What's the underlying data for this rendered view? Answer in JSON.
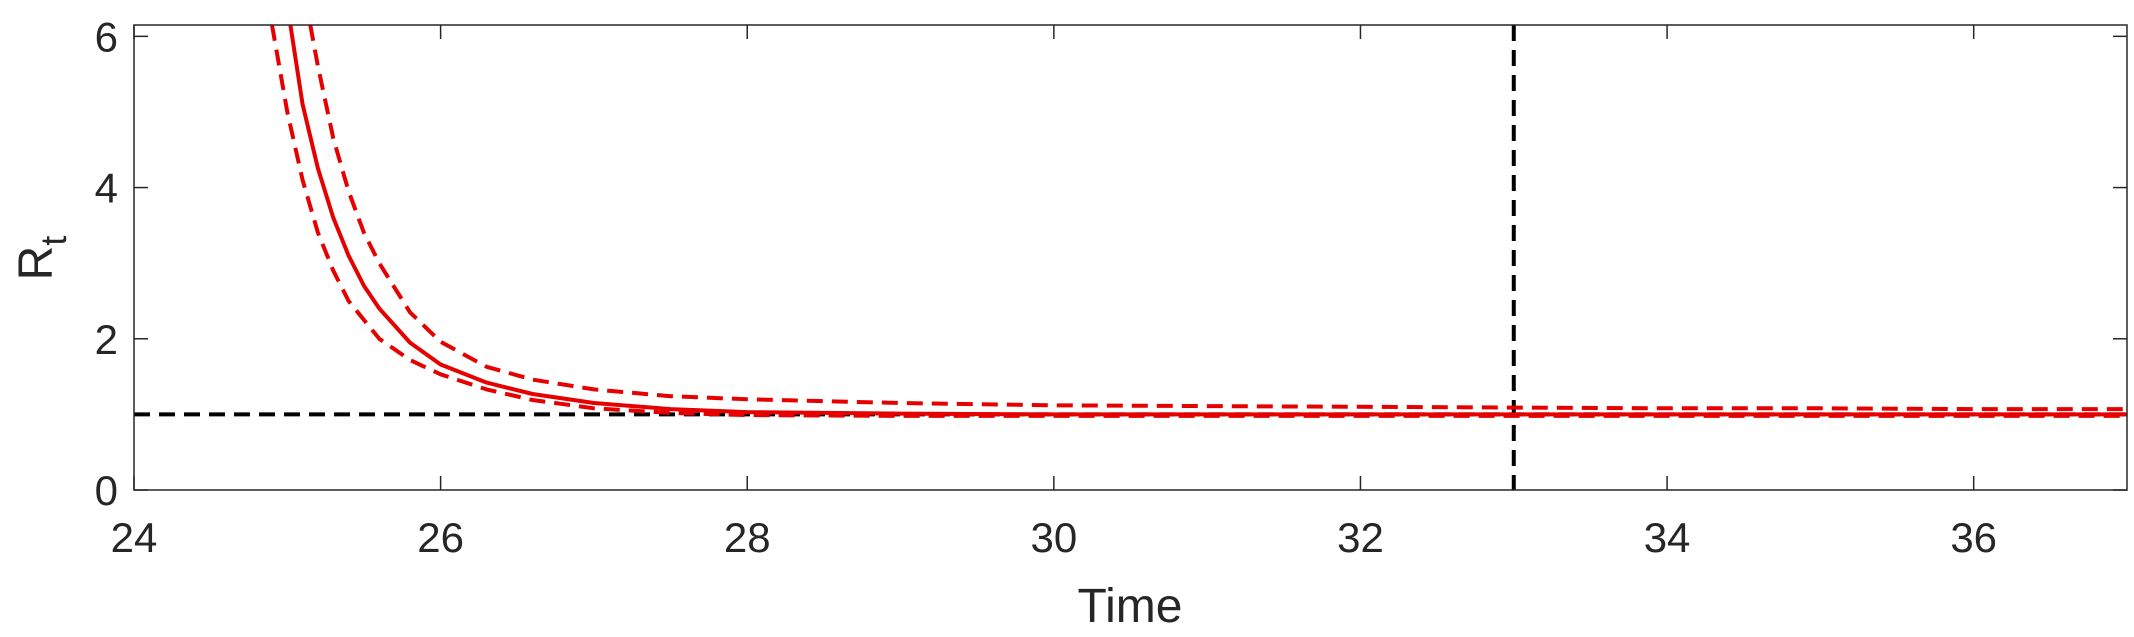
{
  "chart_data": {
    "type": "line",
    "xlabel": "Time",
    "ylabel": "R",
    "ylabel_subscript": "t",
    "xlim": [
      24,
      37
    ],
    "ylim": [
      0,
      6.15
    ],
    "xticks": [
      24,
      26,
      28,
      30,
      32,
      34,
      36
    ],
    "yticks": [
      0,
      2,
      4,
      6
    ],
    "xtick_labels": [
      "24",
      "26",
      "28",
      "30",
      "32",
      "34",
      "36"
    ],
    "ytick_labels": [
      "0",
      "2",
      "4",
      "6"
    ],
    "grid": false,
    "colors": {
      "estimate": "#e60000",
      "reference": "#000000",
      "axis": "#262626"
    },
    "series": [
      {
        "style": "solid",
        "color": "#e60000",
        "x": [
          25.02,
          25.1,
          25.2,
          25.3,
          25.4,
          25.5,
          25.6,
          25.8,
          26.0,
          26.3,
          26.6,
          27.0,
          27.5,
          28.0,
          29.0,
          30.0,
          32.0,
          34.0,
          37.0
        ],
        "y": [
          6.15,
          5.1,
          4.25,
          3.6,
          3.1,
          2.7,
          2.4,
          1.95,
          1.66,
          1.42,
          1.27,
          1.15,
          1.07,
          1.03,
          1.01,
          1.0,
          1.0,
          1.0,
          1.0
        ]
      },
      {
        "style": "dashed",
        "color": "#e60000",
        "x": [
          25.15,
          25.2,
          25.3,
          25.4,
          25.5,
          25.6,
          25.8,
          26.0,
          26.3,
          26.6,
          27.0,
          27.5,
          28.0,
          29.0,
          30.0,
          31.0,
          32.0,
          33.0,
          34.0,
          35.0,
          36.0,
          37.0
        ],
        "y": [
          6.15,
          5.6,
          4.65,
          3.95,
          3.4,
          3.0,
          2.35,
          1.96,
          1.63,
          1.46,
          1.33,
          1.24,
          1.2,
          1.15,
          1.12,
          1.11,
          1.1,
          1.09,
          1.08,
          1.08,
          1.07,
          1.07
        ]
      },
      {
        "style": "dashed",
        "color": "#e60000",
        "x": [
          24.9,
          25.0,
          25.1,
          25.2,
          25.3,
          25.4,
          25.6,
          25.8,
          26.0,
          26.3,
          26.6,
          27.0,
          27.5,
          28.0,
          29.0,
          30.0,
          32.0,
          34.0,
          37.0
        ],
        "y": [
          6.15,
          5.0,
          4.1,
          3.4,
          2.9,
          2.5,
          2.0,
          1.72,
          1.53,
          1.33,
          1.19,
          1.08,
          1.02,
          0.99,
          0.98,
          0.98,
          0.98,
          0.98,
          0.98
        ]
      }
    ],
    "reference_lines": [
      {
        "orientation": "horizontal",
        "value": 1,
        "style": "dashed",
        "color": "#000000"
      },
      {
        "orientation": "vertical",
        "value": 33,
        "style": "dashed",
        "color": "#000000"
      }
    ]
  }
}
